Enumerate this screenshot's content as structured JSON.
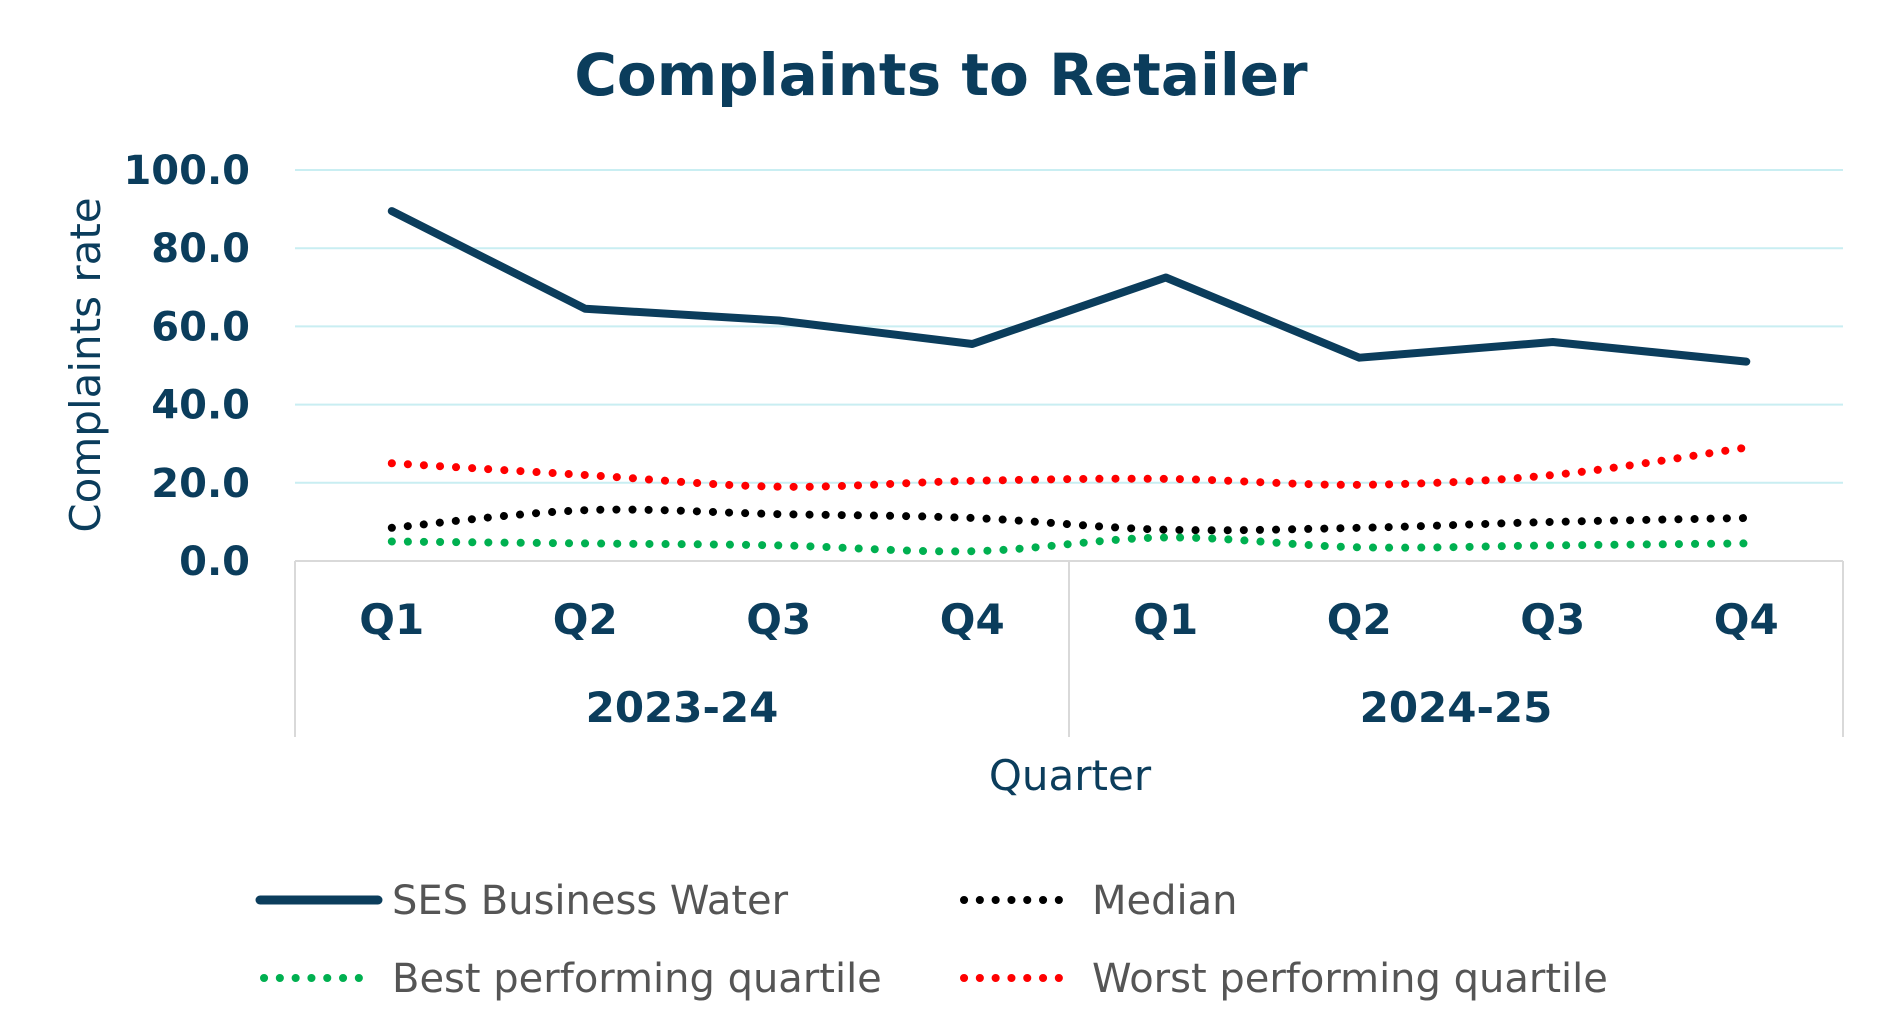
{
  "chart_data": {
    "type": "line",
    "title": "Complaints to Retailer",
    "xlabel": "Quarter",
    "ylabel": "Complaints rate",
    "ylim": [
      0,
      100
    ],
    "yticks": [
      "0.0",
      "20.0",
      "40.0",
      "60.0",
      "80.0",
      "100.0"
    ],
    "categories": [
      "Q1",
      "Q2",
      "Q3",
      "Q4",
      "Q1",
      "Q2",
      "Q3",
      "Q4"
    ],
    "groups": [
      {
        "label": "2023-24",
        "span": 4
      },
      {
        "label": "2024-25",
        "span": 4
      }
    ],
    "grid": true,
    "legend_position": "bottom",
    "series": [
      {
        "name": "SES Business Water",
        "style": "solid",
        "color": "#0b3d5c",
        "values": [
          89.5,
          64.5,
          61.5,
          55.5,
          72.5,
          52.0,
          56.0,
          51.0
        ]
      },
      {
        "name": "Median",
        "style": "dotted",
        "color": "#000000",
        "values": [
          8.5,
          13.0,
          12.0,
          11.0,
          8.0,
          8.5,
          10.0,
          11.0
        ]
      },
      {
        "name": "Best performing quartile",
        "style": "dotted",
        "color": "#00b050",
        "values": [
          5.0,
          4.5,
          4.0,
          2.5,
          6.0,
          3.5,
          4.0,
          4.5
        ]
      },
      {
        "name": "Worst performing quartile",
        "style": "dotted",
        "color": "#ff0000",
        "values": [
          25.0,
          22.0,
          19.0,
          20.5,
          21.0,
          19.5,
          22.0,
          29.0
        ]
      }
    ],
    "colors": {
      "text": "#0b3d5c",
      "gridline": "#c9eef2",
      "axis": "#d9d9d9",
      "legend_text": "#555555"
    }
  }
}
